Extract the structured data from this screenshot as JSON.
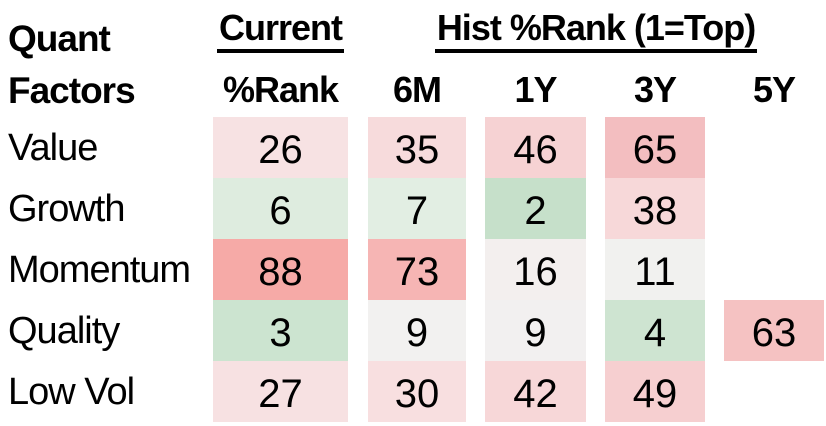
{
  "table": {
    "corner_header": {
      "line1": "Quant",
      "line2": "Factors"
    },
    "group_headers": {
      "current": "Current",
      "hist": "Hist %Rank (1=Top)"
    },
    "col_headers": [
      "%Rank",
      "6M",
      "1Y",
      "3Y",
      "5Y"
    ],
    "rows": [
      {
        "label": "Value",
        "cells": [
          {
            "value": "26",
            "bg": "#f7e2e3"
          },
          {
            "value": "35",
            "bg": "#f7dbdc"
          },
          {
            "value": "46",
            "bg": "#f6d2d3"
          },
          {
            "value": "65",
            "bg": "#f3bec0"
          },
          {
            "value": null,
            "bg": null
          }
        ]
      },
      {
        "label": "Growth",
        "cells": [
          {
            "value": "6",
            "bg": "#deecdf"
          },
          {
            "value": "7",
            "bg": "#e2eee3"
          },
          {
            "value": "2",
            "bg": "#c6e0ca"
          },
          {
            "value": "38",
            "bg": "#f7d8d9"
          },
          {
            "value": null,
            "bg": null
          }
        ]
      },
      {
        "label": "Momentum",
        "cells": [
          {
            "value": "88",
            "bg": "#f6aaa7"
          },
          {
            "value": "73",
            "bg": "#f6b5b4"
          },
          {
            "value": "16",
            "bg": "#f3efee"
          },
          {
            "value": "11",
            "bg": "#f1f1ef"
          },
          {
            "value": null,
            "bg": null
          }
        ]
      },
      {
        "label": "Quality",
        "cells": [
          {
            "value": "3",
            "bg": "#cce4d0"
          },
          {
            "value": "9",
            "bg": "#f2f1f0"
          },
          {
            "value": "9",
            "bg": "#f2f0f0"
          },
          {
            "value": "4",
            "bg": "#cee4d1"
          },
          {
            "value": "63",
            "bg": "#f5c2c2"
          }
        ]
      },
      {
        "label": "Low Vol",
        "cells": [
          {
            "value": "27",
            "bg": "#f7e1e2"
          },
          {
            "value": "30",
            "bg": "#f8dfe0"
          },
          {
            "value": "42",
            "bg": "#f7d7d8"
          },
          {
            "value": "49",
            "bg": "#f6cfd0"
          },
          {
            "value": null,
            "bg": null
          }
        ]
      }
    ]
  },
  "colors": {
    "text": "#000000",
    "background": "#ffffff",
    "heat_low_green": "#c6e0ca",
    "heat_mid_white": "#f2f1f0",
    "heat_high_red": "#f6aaa7"
  },
  "chart_data": {
    "type": "heatmap",
    "title": "Quant Factors",
    "column_group_labels": [
      "Current",
      "Hist %Rank (1=Top)"
    ],
    "columns": [
      "Current %Rank",
      "6M",
      "1Y",
      "3Y",
      "5Y"
    ],
    "rows": [
      "Value",
      "Growth",
      "Momentum",
      "Quality",
      "Low Vol"
    ],
    "values": [
      [
        26,
        35,
        46,
        65,
        null
      ],
      [
        6,
        7,
        2,
        38,
        null
      ],
      [
        88,
        73,
        16,
        11,
        null
      ],
      [
        3,
        9,
        9,
        4,
        63
      ],
      [
        27,
        30,
        42,
        49,
        null
      ]
    ],
    "scale": "percentile rank 1-100, 1=top; low ranks shaded green, mid near-white, high ranks shaded red"
  }
}
